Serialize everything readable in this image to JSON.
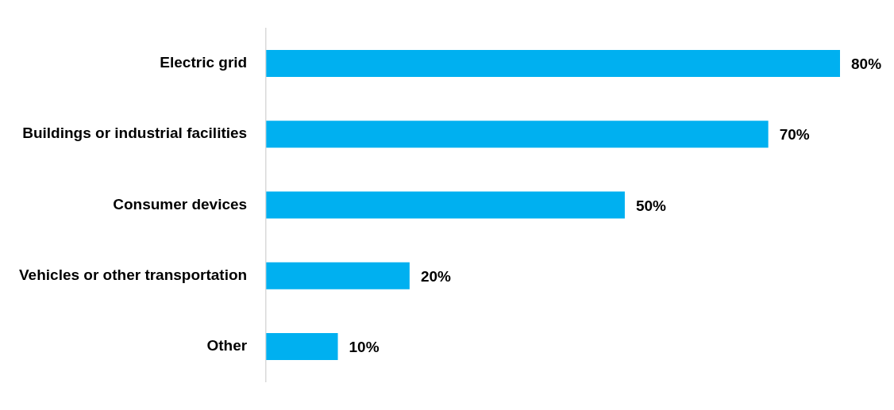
{
  "chart_data": {
    "type": "bar",
    "orientation": "horizontal",
    "categories": [
      "Electric grid",
      "Buildings or industrial facilities",
      "Consumer devices",
      "Vehicles or other transportation",
      "Other"
    ],
    "values": [
      80,
      70,
      50,
      20,
      10
    ],
    "value_labels": [
      "80%",
      "70%",
      "50%",
      "20%",
      "10%"
    ],
    "color": "#00b0f0"
  }
}
